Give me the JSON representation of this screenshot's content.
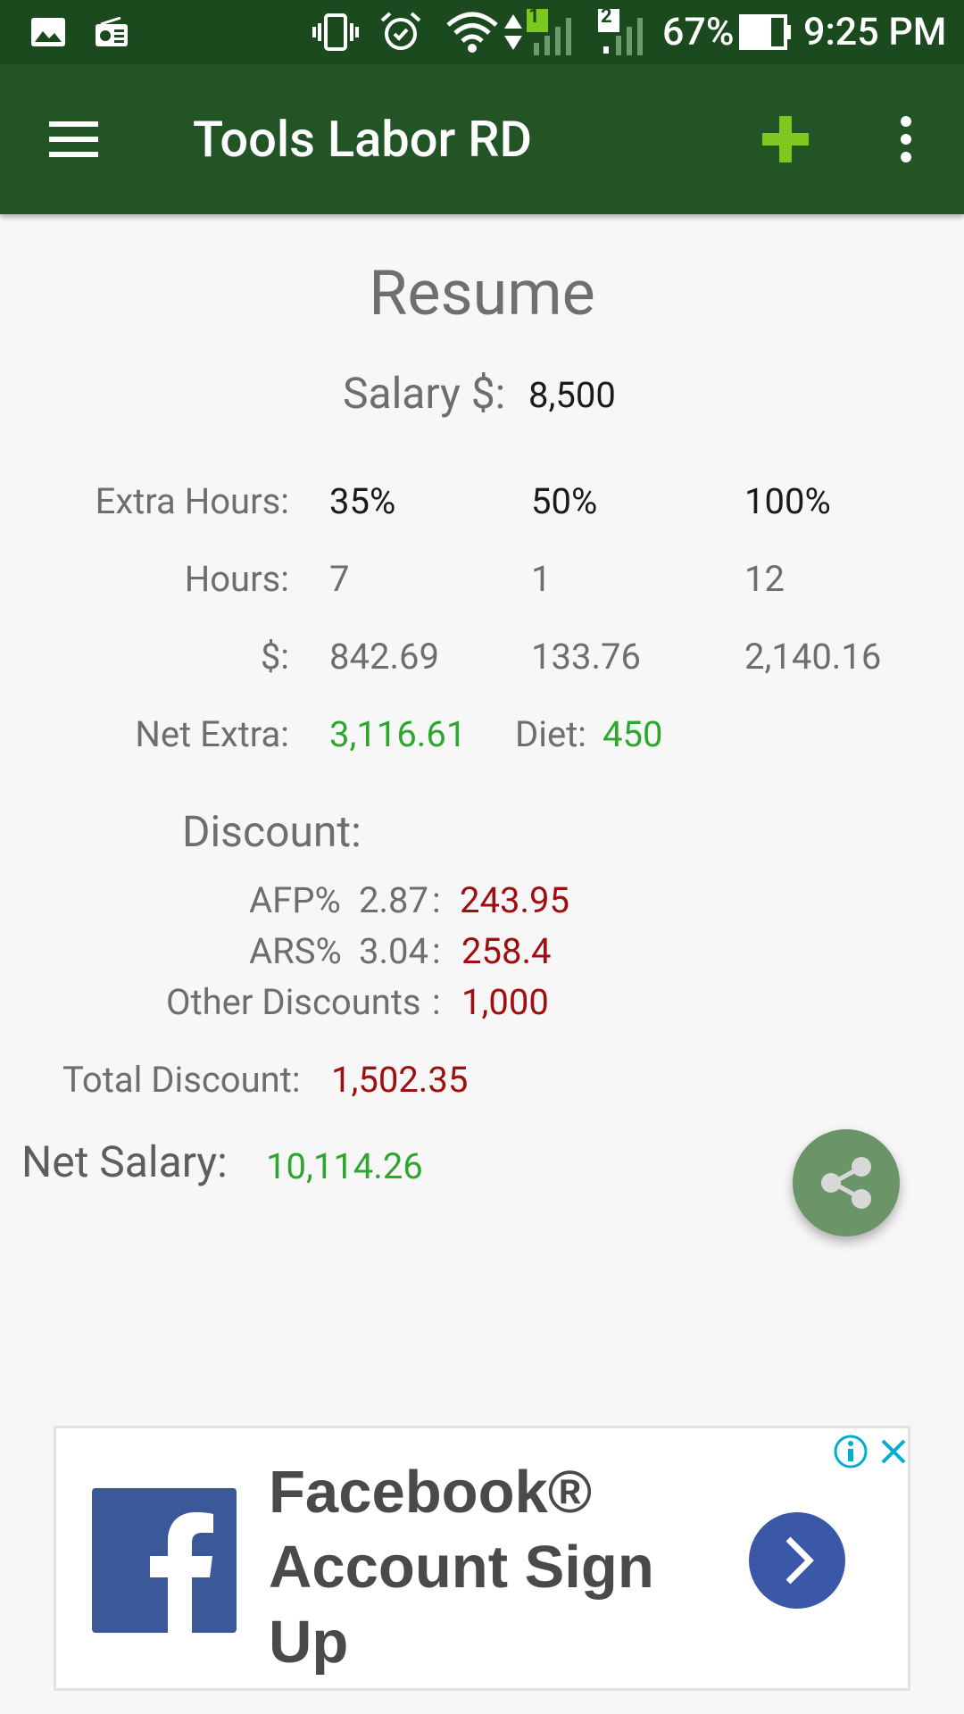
{
  "status_bar": {
    "battery": "67%",
    "time": "9:25 PM",
    "sim1_badge": "1",
    "sim2_badge": "2",
    "icons": [
      "image-icon",
      "radio-icon",
      "vibrate-icon",
      "alarm-icon",
      "wifi-icon",
      "data-arrows-icon",
      "signal-icon",
      "battery-icon"
    ]
  },
  "app_bar": {
    "title": "Tools Labor RD",
    "icons": [
      "menu-icon",
      "add-icon",
      "more-vert-icon"
    ],
    "add_color": "#7dc81e"
  },
  "resume": {
    "title": "Resume",
    "salary_label": "Salary $:",
    "salary_value": "8,500",
    "extra_hours_label": "Extra Hours:",
    "percent_headers": [
      "35%",
      "50%",
      "100%"
    ],
    "hours_label": "Hours:",
    "hours": [
      "7",
      "1",
      "12"
    ],
    "amount_label": "$:",
    "amounts": [
      "842.69",
      "133.76",
      "2,140.16"
    ],
    "net_extra_label": "Net Extra:",
    "net_extra_value": "3,116.61",
    "diet_label": "Diet:",
    "diet_value": "450"
  },
  "discount": {
    "title": "Discount:",
    "afp_label": "AFP%",
    "afp_rate": "2.87",
    "afp_value": "243.95",
    "ars_label": "ARS%",
    "ars_rate": "3.04",
    "ars_value": "258.4",
    "other_label": "Other Discounts",
    "other_value": "1,000",
    "colon": ":",
    "total_label": "Total Discount:",
    "total_value": "1,502.35"
  },
  "net_salary": {
    "label": "Net Salary:",
    "value": "10,114.26"
  },
  "fab": {
    "icon": "share-icon"
  },
  "ad": {
    "headline": "Facebook® Account Sign Up",
    "logo": "facebook-logo-icon",
    "go_icon": "chevron-right-icon",
    "info_icon": "info-icon",
    "close_icon": "close-icon"
  }
}
